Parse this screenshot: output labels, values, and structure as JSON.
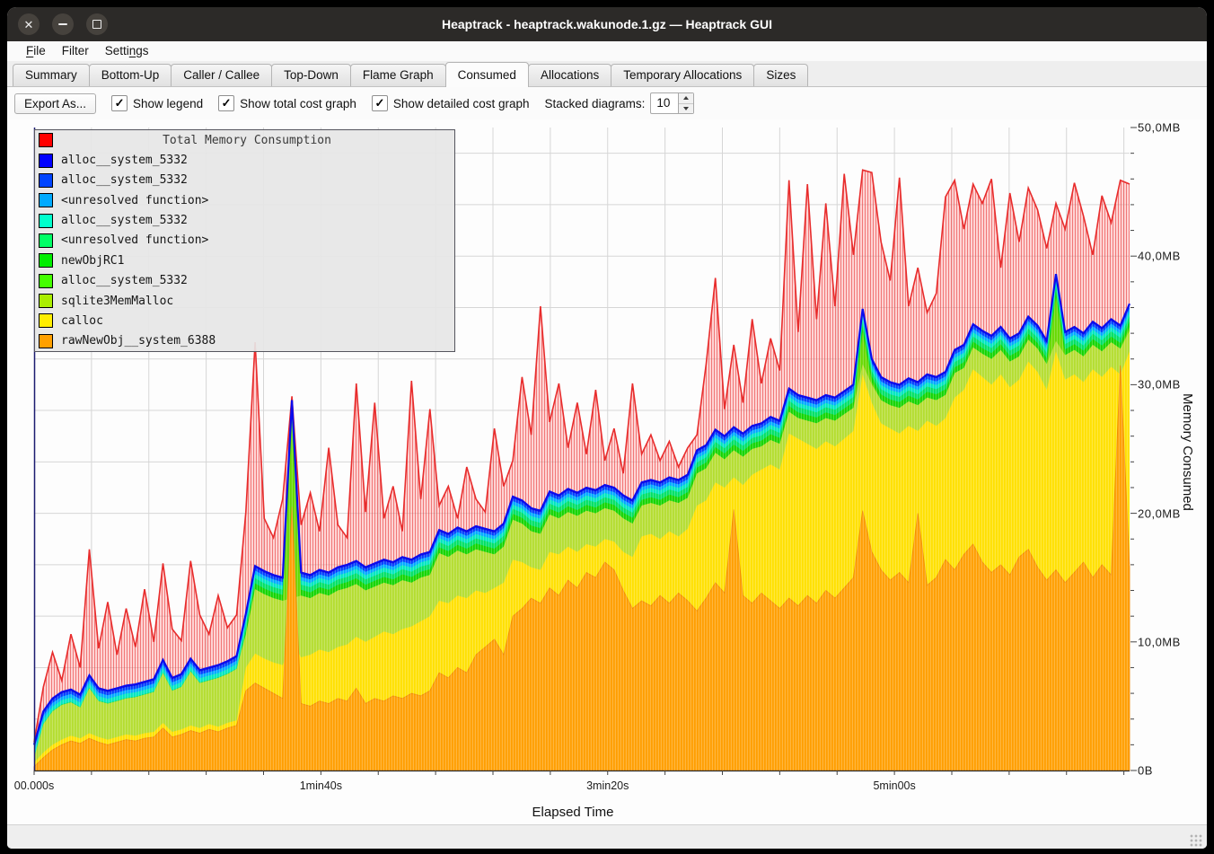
{
  "window": {
    "title": "Heaptrack - heaptrack.wakunode.1.gz — Heaptrack GUI",
    "controls": [
      "close",
      "minimize",
      "maximize"
    ]
  },
  "menu": {
    "items": [
      {
        "label": "File",
        "underline_index": 0
      },
      {
        "label": "Filter",
        "underline_index": -1
      },
      {
        "label": "Settings",
        "underline_index": 5
      }
    ]
  },
  "tabs": {
    "active": "Consumed",
    "items": [
      "Summary",
      "Bottom-Up",
      "Caller / Callee",
      "Top-Down",
      "Flame Graph",
      "Consumed",
      "Allocations",
      "Temporary Allocations",
      "Sizes"
    ]
  },
  "toolbar": {
    "export_label": "Export As...",
    "checkboxes": [
      {
        "label": "Show legend",
        "checked": true
      },
      {
        "label": "Show total cost graph",
        "checked": true
      },
      {
        "label": "Show detailed cost graph",
        "checked": true
      }
    ],
    "stacked_label": "Stacked diagrams:",
    "stacked_value": "10"
  },
  "legend": {
    "title": "Total Memory Consumption",
    "title_swatch_color": "#ff0000",
    "items": [
      {
        "label": "alloc__system_5332",
        "color": "#0000ff"
      },
      {
        "label": "alloc__system_5332",
        "color": "#0044ff"
      },
      {
        "label": "<unresolved function>",
        "color": "#00aaff"
      },
      {
        "label": "alloc__system_5332",
        "color": "#00ffcc"
      },
      {
        "label": "<unresolved function>",
        "color": "#00ff66"
      },
      {
        "label": "newObjRC1",
        "color": "#00ee00"
      },
      {
        "label": "alloc__system_5332",
        "color": "#44ff00"
      },
      {
        "label": "sqlite3MemMalloc",
        "color": "#aaee00"
      },
      {
        "label": "calloc",
        "color": "#ffee00"
      },
      {
        "label": "rawNewObj__system_6388",
        "color": "#ffa000"
      }
    ]
  },
  "chart_data": {
    "type": "area",
    "title": "Total Memory Consumption",
    "xlabel": "Elapsed Time",
    "ylabel": "Memory Consumed",
    "x_ticks": [
      "00.000s",
      "1min40s",
      "3min20s",
      "5min00s"
    ],
    "x_label_seconds": [
      0,
      100,
      200,
      300
    ],
    "x_total_seconds": 382,
    "gridline_step_seconds": 20,
    "y_ticks": [
      "0B",
      "10,0MB",
      "20,0MB",
      "30,0MB",
      "40,0MB",
      "50,0MB"
    ],
    "y_tick_values_mb": [
      0,
      10,
      20,
      30,
      40,
      50
    ],
    "y_minor_tick_step_mb": 2,
    "y_gridline_step_mb": 4,
    "ylim_mb": [
      0,
      50
    ],
    "samples": 120,
    "sample_step_seconds": 3.21,
    "legend_position": "top-left",
    "grid": true,
    "series": {
      "total": {
        "name": "Total Memory Consumption",
        "color": "#e82c2c",
        "fill": "hatch-red",
        "values_mb": [
          2.2,
          6.5,
          9.2,
          7.0,
          10.6,
          8.0,
          17.2,
          9.5,
          13.1,
          9.0,
          12.6,
          9.6,
          14.1,
          10.0,
          16.1,
          11.0,
          10.1,
          16.3,
          12.1,
          10.6,
          13.6,
          11.1,
          12.1,
          20.1,
          33.3,
          19.6,
          18.1,
          21.1,
          29.1,
          19.1,
          21.6,
          18.6,
          25.1,
          19.1,
          18.1,
          30.1,
          20.1,
          28.6,
          19.6,
          22.1,
          18.6,
          30.3,
          21.1,
          28.1,
          20.6,
          22.1,
          19.6,
          23.6,
          21.1,
          20.1,
          26.6,
          22.1,
          24.1,
          30.6,
          26.1,
          36.1,
          27.1,
          30.1,
          25.1,
          28.6,
          24.6,
          29.6,
          24.1,
          26.6,
          23.1,
          30.1,
          24.6,
          26.1,
          24.1,
          25.6,
          23.6,
          25.1,
          26.1,
          31.6,
          38.3,
          28.1,
          33.1,
          28.6,
          35.1,
          30.1,
          33.6,
          31.1,
          45.9,
          34.1,
          45.6,
          35.1,
          44.1,
          36.1,
          46.4,
          40.1,
          46.7,
          46.5,
          41.1,
          38.1,
          46.1,
          36.1,
          39.1,
          35.6,
          37.1,
          44.6,
          45.9,
          42.1,
          45.6,
          44.1,
          46.0,
          39.1,
          44.9,
          41.1,
          45.3,
          43.6,
          40.6,
          44.1,
          42.1,
          45.7,
          43.1,
          40.1,
          44.7,
          42.6,
          45.9,
          45.6
        ]
      },
      "stack_top": {
        "name": "alloc__system_5332",
        "color": "#0b0bed",
        "values_mb": [
          2.0,
          4.6,
          5.6,
          6.1,
          6.3,
          5.9,
          7.4,
          6.4,
          6.2,
          6.4,
          6.6,
          6.7,
          6.9,
          7.1,
          8.6,
          7.2,
          7.5,
          8.7,
          7.8,
          8.0,
          8.2,
          8.5,
          8.9,
          12.2,
          15.9,
          15.5,
          15.2,
          15.0,
          28.8,
          15.4,
          15.2,
          15.6,
          15.4,
          15.8,
          16.0,
          16.3,
          15.8,
          16.1,
          16.4,
          16.2,
          16.6,
          16.4,
          16.8,
          17.0,
          18.7,
          18.4,
          18.9,
          18.6,
          19.0,
          18.8,
          18.6,
          19.2,
          21.3,
          21.0,
          20.4,
          20.2,
          21.7,
          21.4,
          21.9,
          21.6,
          22.0,
          21.8,
          22.2,
          22.0,
          21.4,
          21.0,
          22.4,
          22.6,
          22.4,
          22.8,
          22.6,
          23.0,
          24.9,
          25.3,
          26.5,
          26.0,
          26.7,
          26.2,
          26.8,
          27.0,
          27.5,
          27.2,
          29.7,
          29.2,
          29.0,
          28.8,
          29.2,
          29.0,
          29.5,
          30.0,
          35.9,
          32.0,
          30.6,
          30.2,
          30.0,
          30.5,
          30.2,
          30.8,
          30.6,
          31.0,
          32.7,
          33.1,
          34.7,
          34.2,
          33.8,
          34.5,
          33.6,
          34.0,
          35.3,
          34.6,
          33.4,
          38.6,
          34.1,
          34.5,
          34.0,
          34.9,
          34.4,
          35.1,
          34.6,
          36.3
        ]
      },
      "sqlite3MemMalloc": {
        "name": "sqlite3MemMalloc",
        "color": "#b4dd30",
        "values_mb": [
          1.0,
          3.6,
          4.6,
          5.1,
          5.3,
          4.9,
          6.4,
          5.4,
          5.2,
          5.4,
          5.6,
          5.7,
          5.9,
          6.1,
          7.6,
          6.2,
          6.5,
          7.7,
          6.8,
          7.0,
          7.2,
          7.5,
          7.9,
          10.6,
          14.1,
          13.7,
          13.4,
          13.2,
          13.4,
          13.6,
          13.4,
          13.8,
          13.6,
          14.0,
          14.2,
          14.5,
          14.0,
          14.3,
          14.6,
          14.4,
          14.8,
          14.6,
          15.0,
          15.2,
          16.9,
          16.6,
          17.1,
          16.8,
          17.2,
          17.0,
          16.8,
          17.4,
          19.5,
          19.2,
          18.6,
          18.4,
          19.9,
          19.6,
          20.1,
          19.8,
          20.2,
          20.0,
          20.4,
          20.2,
          19.6,
          19.2,
          20.6,
          20.8,
          20.6,
          21.0,
          20.8,
          21.2,
          23.1,
          23.5,
          24.7,
          24.2,
          24.9,
          24.4,
          25.0,
          25.2,
          25.7,
          25.4,
          27.9,
          27.4,
          27.2,
          27.0,
          27.4,
          27.2,
          27.7,
          28.2,
          31.6,
          30.0,
          28.8,
          28.4,
          28.2,
          28.7,
          28.4,
          29.0,
          28.8,
          29.2,
          30.9,
          31.3,
          32.9,
          32.4,
          32.0,
          32.7,
          31.8,
          32.2,
          33.5,
          32.8,
          31.6,
          33.4,
          32.3,
          32.7,
          32.2,
          33.1,
          32.6,
          33.3,
          32.8,
          34.2
        ]
      },
      "calloc": {
        "name": "calloc",
        "color": "#ffe000",
        "values_mb": [
          0.6,
          1.4,
          2.0,
          2.4,
          2.7,
          2.5,
          2.9,
          2.6,
          2.4,
          2.6,
          2.8,
          2.7,
          2.9,
          3.0,
          3.7,
          3.0,
          3.2,
          3.5,
          3.3,
          3.6,
          3.4,
          3.7,
          3.9,
          8.0,
          9.1,
          8.7,
          8.4,
          8.2,
          10.0,
          8.8,
          9.0,
          9.4,
          9.2,
          9.6,
          9.8,
          10.4,
          10.0,
          10.4,
          10.8,
          10.6,
          11.0,
          11.2,
          11.6,
          12.0,
          13.2,
          13.0,
          13.6,
          13.4,
          14.0,
          13.8,
          14.2,
          14.6,
          16.4,
          16.2,
          15.8,
          15.6,
          17.0,
          16.8,
          17.4,
          17.0,
          17.6,
          17.4,
          18.0,
          17.8,
          17.0,
          16.6,
          18.2,
          18.4,
          18.0,
          18.6,
          18.2,
          18.8,
          20.6,
          21.0,
          22.4,
          22.0,
          22.8,
          22.2,
          23.0,
          23.4,
          23.8,
          23.4,
          26.2,
          25.8,
          25.4,
          25.0,
          25.6,
          25.2,
          25.8,
          26.4,
          30.8,
          28.6,
          27.0,
          26.6,
          26.2,
          26.8,
          26.4,
          27.2,
          26.8,
          27.4,
          29.0,
          29.6,
          31.2,
          30.6,
          30.0,
          30.8,
          29.8,
          30.4,
          31.8,
          31.0,
          29.6,
          32.6,
          30.4,
          30.8,
          30.2,
          31.2,
          30.6,
          31.4,
          30.8,
          32.6
        ]
      },
      "rawNewObj__system_6388": {
        "name": "rawNewObj__system_6388",
        "color": "#ff9e00",
        "values_mb": [
          0.3,
          1.0,
          1.6,
          2.0,
          2.3,
          2.1,
          2.5,
          2.2,
          2.0,
          2.2,
          2.4,
          2.3,
          2.5,
          2.6,
          3.3,
          2.6,
          2.8,
          3.1,
          2.9,
          3.2,
          3.0,
          3.3,
          3.5,
          6.2,
          6.8,
          6.4,
          6.0,
          5.6,
          20.5,
          5.2,
          5.0,
          5.4,
          5.2,
          5.6,
          5.4,
          6.4,
          5.2,
          5.6,
          5.4,
          5.8,
          5.6,
          6.0,
          5.8,
          6.2,
          7.6,
          7.2,
          8.0,
          7.6,
          9.0,
          9.6,
          10.2,
          9.0,
          12.0,
          12.6,
          13.4,
          13.0,
          14.2,
          13.6,
          14.8,
          14.2,
          15.4,
          15.0,
          16.2,
          15.6,
          14.0,
          12.6,
          13.2,
          12.8,
          13.6,
          13.0,
          13.8,
          13.2,
          12.4,
          13.4,
          14.6,
          13.8,
          20.3,
          13.6,
          13.0,
          13.8,
          13.2,
          12.6,
          13.4,
          12.8,
          13.6,
          13.0,
          14.0,
          13.4,
          14.2,
          15.0,
          20.2,
          17.0,
          15.6,
          14.8,
          15.4,
          14.6,
          20.0,
          14.4,
          15.0,
          16.4,
          15.6,
          16.8,
          17.6,
          16.2,
          15.4,
          16.0,
          15.2,
          16.6,
          17.2,
          15.8,
          14.8,
          15.6,
          14.6,
          15.4,
          16.2,
          15.0,
          16.0,
          15.2,
          31.5,
          15.8
        ]
      }
    },
    "band_series": [
      {
        "name": "alloc__system_5332",
        "color": "#0040ff",
        "offset_below_top_mb": 0.12
      },
      {
        "name": "<unresolved function>",
        "color": "#00a8ff",
        "offset_below_top_mb": 0.35
      },
      {
        "name": "alloc__system_5332",
        "color": "#00e6c0",
        "offset_below_top_mb": 0.62
      },
      {
        "name": "<unresolved function>",
        "color": "#00e064",
        "offset_below_top_mb": 0.95
      },
      {
        "name": "newObjRC1",
        "color": "#12d400",
        "offset_below_top_mb": 1.35
      },
      {
        "name": "alloc__system_5332",
        "color": "#66d800",
        "offset_below_top_mb": 1.8
      }
    ]
  }
}
